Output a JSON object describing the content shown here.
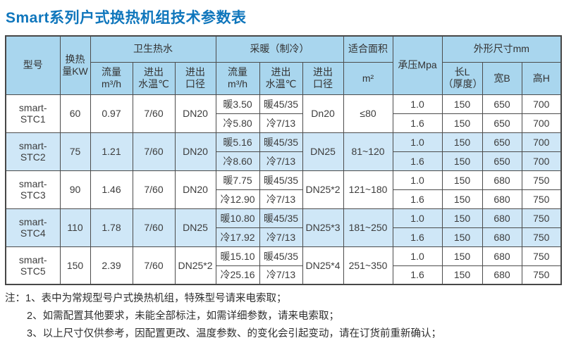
{
  "page": {
    "title": "Smart系列户式换热机组技术参数表"
  },
  "colors": {
    "title_blue": "#0f76bc",
    "header_bg": "#a9d6ee",
    "stripe_bg": "#cfe7f7",
    "border": "#4c4c4c"
  },
  "table": {
    "headers": {
      "model": "型号",
      "capacity_line1": "换热",
      "capacity_line2": "量KW",
      "dhw_group": "卫生热水",
      "heating_group": "采暖（制冷）",
      "area_group": "适合面积",
      "pressure": "承压Mpa",
      "dimensions_group": "外形尺寸mm",
      "flow_line1": "流量",
      "flow_line2": "m³/h",
      "temp_line1": "进出",
      "temp_line2": "水温℃",
      "dn_line1": "进出",
      "dn_line2": "口径",
      "area_unit": "m²",
      "length_line1": "长L",
      "length_line2": "（厚度）",
      "width": "宽B",
      "height": "高H"
    },
    "rows": [
      {
        "model": "smart-STC1",
        "kw": "60",
        "dhw": {
          "flow": "0.97",
          "temp": "7/60",
          "dn": "DN20"
        },
        "heating": {
          "flow_warm": "暖3.50",
          "flow_cool": "冷5.80",
          "temp_warm": "暖45/35",
          "temp_cool": "冷7/13",
          "dn": "Dn20"
        },
        "area": "≤80",
        "sub": [
          {
            "mpa": "1.0",
            "l": "150",
            "b": "650",
            "h": "700"
          },
          {
            "mpa": "1.6",
            "l": "150",
            "b": "650",
            "h": "700"
          }
        ]
      },
      {
        "model": "smart-STC2",
        "kw": "75",
        "dhw": {
          "flow": "1.21",
          "temp": "7/60",
          "dn": "DN20"
        },
        "heating": {
          "flow_warm": "暖5.16",
          "flow_cool": "冷8.60",
          "temp_warm": "暖45/35",
          "temp_cool": "冷7/13",
          "dn": "DN25"
        },
        "area": "81~120",
        "sub": [
          {
            "mpa": "1.0",
            "l": "150",
            "b": "650",
            "h": "700"
          },
          {
            "mpa": "1.6",
            "l": "150",
            "b": "650",
            "h": "700"
          }
        ]
      },
      {
        "model": "smart-STC3",
        "kw": "90",
        "dhw": {
          "flow": "1.46",
          "temp": "7/60",
          "dn": "DN20"
        },
        "heating": {
          "flow_warm": "暖7.75",
          "flow_cool": "冷12.90",
          "temp_warm": "暖45/35",
          "temp_cool": "冷7/13",
          "dn": "DN25*2"
        },
        "area": "121~180",
        "sub": [
          {
            "mpa": "1.0",
            "l": "150",
            "b": "680",
            "h": "750"
          },
          {
            "mpa": "1.6",
            "l": "150",
            "b": "680",
            "h": "750"
          }
        ]
      },
      {
        "model": "smart-STC4",
        "kw": "110",
        "dhw": {
          "flow": "1.78",
          "temp": "7/60",
          "dn": "DN25"
        },
        "heating": {
          "flow_warm": "暖10.80",
          "flow_cool": "冷17.92",
          "temp_warm": "暖45/35",
          "temp_cool": "冷7/13",
          "dn": "DN25*3"
        },
        "area": "181~250",
        "sub": [
          {
            "mpa": "1.0",
            "l": "150",
            "b": "680",
            "h": "750"
          },
          {
            "mpa": "1.6",
            "l": "150",
            "b": "680",
            "h": "750"
          }
        ]
      },
      {
        "model": "smart-STC5",
        "kw": "150",
        "dhw": {
          "flow": "2.39",
          "temp": "7/60",
          "dn": "DN25*2"
        },
        "heating": {
          "flow_warm": "暖15.10",
          "flow_cool": "冷25.16",
          "temp_warm": "暖45/35",
          "temp_cool": "冷7/13",
          "dn": "DN25*4"
        },
        "area": "251~350",
        "sub": [
          {
            "mpa": "1.0",
            "l": "150",
            "b": "680",
            "h": "750"
          },
          {
            "mpa": "1.6",
            "l": "150",
            "b": "680",
            "h": "750"
          }
        ]
      }
    ]
  },
  "notes": {
    "label": "注：",
    "items": [
      "1、表中为常规型号户式换热机组，特殊型号请来电索取；",
      "2、如需配置其他要求，未能全部标注，如需详细参数，请来电索取；",
      "3、以上尺寸仅供参考，因配置更改、温度参数、的变化会引起变动，请在订货前重新确认；"
    ]
  }
}
